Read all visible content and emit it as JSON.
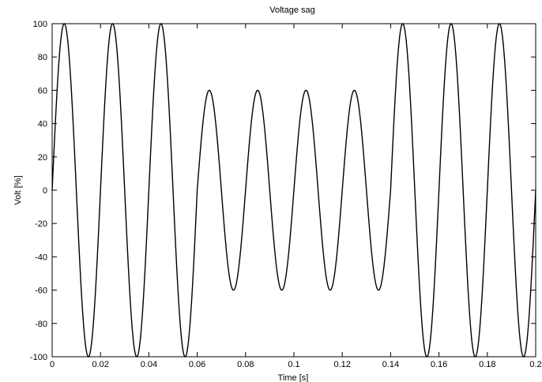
{
  "chart_data": {
    "type": "line",
    "title": "Voltage sag",
    "xlabel": "Time [s]",
    "ylabel": "Volt [%]",
    "xlim": [
      0,
      0.2
    ],
    "ylim": [
      -100,
      100
    ],
    "xticks": [
      0,
      0.02,
      0.04,
      0.06,
      0.08,
      0.1,
      0.12,
      0.14,
      0.16,
      0.18,
      0.2
    ],
    "xtick_labels": [
      "0",
      "0.02",
      "0.04",
      "0.06",
      "0.08",
      "0.1",
      "0.12",
      "0.14",
      "0.16",
      "0.18",
      "0.2"
    ],
    "yticks": [
      -100,
      -80,
      -60,
      -40,
      -20,
      0,
      20,
      40,
      60,
      80,
      100
    ],
    "ytick_labels": [
      "-100",
      "-80",
      "-60",
      "-40",
      "-20",
      "0",
      "20",
      "40",
      "60",
      "80",
      "100"
    ],
    "grid": false,
    "series": [
      {
        "frequency_hz": 50,
        "segments": [
          {
            "t_start": 0,
            "t_end": 0.06,
            "amplitude": 100
          },
          {
            "t_start": 0.06,
            "t_end": 0.14,
            "amplitude": 60
          },
          {
            "t_start": 0.14,
            "t_end": 0.2,
            "amplitude": 100
          }
        ],
        "color": "#000000"
      }
    ]
  }
}
